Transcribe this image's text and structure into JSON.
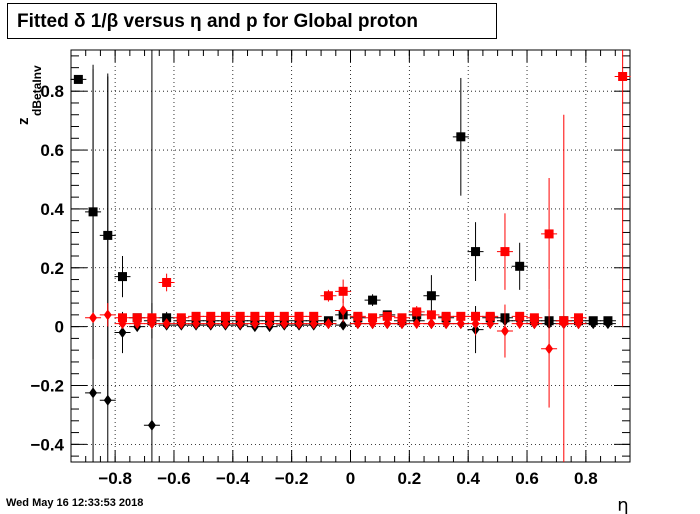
{
  "title": "Fitted δ 1/β versus η and p for Global proton",
  "timestamp": "Wed May 16 12:33:53 2018",
  "chart_data": {
    "type": "scatter",
    "title": "Fitted δ 1/β versus η and p for Global proton",
    "xlabel": "η",
    "ylabel_main": "z",
    "ylabel_sub": "dBetaInv",
    "xlim": [
      -0.95,
      0.95
    ],
    "ylim": [
      -0.46,
      0.94
    ],
    "grid": true,
    "x_ticks": [
      -0.8,
      -0.6,
      -0.4,
      -0.2,
      0,
      0.2,
      0.4,
      0.6,
      0.8
    ],
    "x_tick_labels": [
      "−0.8",
      "−0.6",
      "−0.4",
      "−0.2",
      "0",
      "0.2",
      "0.4",
      "0.6",
      "0.8"
    ],
    "y_ticks": [
      -0.4,
      -0.2,
      0,
      0.2,
      0.4,
      0.6,
      0.8
    ],
    "y_tick_labels": [
      "−0.4",
      "−0.2",
      "0",
      "0.2",
      "0.4",
      "0.6",
      "0.8"
    ],
    "series": [
      {
        "marker": "square",
        "color": "#000000",
        "x": [
          -0.925,
          -0.875,
          -0.825,
          -0.775,
          -0.725,
          -0.675,
          -0.625,
          -0.575,
          -0.525,
          -0.475,
          -0.425,
          -0.375,
          -0.325,
          -0.275,
          -0.225,
          -0.175,
          -0.125,
          -0.075,
          -0.025,
          0.025,
          0.075,
          0.125,
          0.175,
          0.225,
          0.275,
          0.325,
          0.375,
          0.425,
          0.475,
          0.525,
          0.575,
          0.625,
          0.675,
          0.725,
          0.775,
          0.825,
          0.875
        ],
        "y": [
          0.84,
          0.39,
          0.31,
          0.17,
          0.03,
          0.02,
          0.03,
          0.02,
          0.02,
          0.02,
          0.02,
          0.02,
          0.02,
          0.02,
          0.02,
          0.02,
          0.02,
          0.02,
          0.04,
          0.03,
          0.09,
          0.04,
          0.02,
          0.04,
          0.105,
          0.03,
          0.645,
          0.255,
          0.03,
          0.03,
          0.205,
          0.02,
          0.02,
          0.02,
          0.02,
          0.02,
          0.02
        ],
        "err": [
          0,
          0.5,
          0.55,
          0.07,
          0,
          0.06,
          0.02,
          0,
          0,
          0,
          0,
          0,
          0,
          0,
          0,
          0,
          0,
          0,
          0,
          0,
          0.02,
          0,
          0,
          0,
          0.07,
          0,
          0.2,
          0.1,
          0,
          0,
          0.08,
          0,
          0,
          0,
          0,
          0,
          0
        ]
      },
      {
        "marker": "diamond",
        "color": "#000000",
        "x": [
          -0.875,
          -0.825,
          -0.775,
          -0.725,
          -0.675,
          -0.625,
          -0.575,
          -0.525,
          -0.475,
          -0.425,
          -0.375,
          -0.325,
          -0.275,
          -0.225,
          -0.175,
          -0.125,
          -0.075,
          -0.025,
          0.025,
          0.075,
          0.125,
          0.175,
          0.225,
          0.275,
          0.325,
          0.375,
          0.425,
          0.475,
          0.525,
          0.575,
          0.625,
          0.675,
          0.725,
          0.775,
          0.825,
          0.875
        ],
        "y": [
          -0.225,
          -0.25,
          -0.02,
          0.0,
          -0.335,
          0.005,
          0.005,
          0.005,
          0.005,
          0.005,
          0.005,
          0.0,
          0.0,
          0.005,
          0.005,
          0.005,
          0.01,
          0.005,
          0.01,
          0.01,
          0.01,
          0.01,
          0.02,
          0.01,
          0.01,
          0.01,
          -0.01,
          0.01,
          0.02,
          0.02,
          0.01,
          0.01,
          0.01,
          0.01,
          0.01,
          0.01
        ],
        "err": [
          1.1,
          1.1,
          0.07,
          0,
          1.3,
          0,
          0,
          0,
          0,
          0,
          0,
          0,
          0,
          0,
          0,
          0,
          0,
          0,
          0,
          0,
          0,
          0,
          0,
          0,
          0,
          0,
          0.08,
          0,
          0,
          0,
          0,
          0,
          0,
          0,
          0,
          0
        ]
      },
      {
        "marker": "square",
        "color": "#ff0000",
        "x": [
          -0.775,
          -0.725,
          -0.675,
          -0.625,
          -0.575,
          -0.525,
          -0.475,
          -0.425,
          -0.375,
          -0.325,
          -0.275,
          -0.225,
          -0.175,
          -0.125,
          -0.075,
          -0.025,
          0.025,
          0.075,
          0.125,
          0.175,
          0.225,
          0.275,
          0.325,
          0.375,
          0.425,
          0.475,
          0.525,
          0.575,
          0.625,
          0.675,
          0.725,
          0.775,
          0.925
        ],
        "y": [
          0.03,
          0.03,
          0.03,
          0.15,
          0.03,
          0.035,
          0.035,
          0.035,
          0.035,
          0.035,
          0.035,
          0.035,
          0.035,
          0.035,
          0.105,
          0.12,
          0.035,
          0.03,
          0.035,
          0.03,
          0.05,
          0.04,
          0.035,
          0.035,
          0.035,
          0.035,
          0.255,
          0.035,
          0.03,
          0.315,
          0.02,
          0.03,
          0.85
        ],
        "err": [
          0,
          0,
          0,
          0.03,
          0,
          0,
          0,
          0,
          0,
          0,
          0,
          0,
          0,
          0,
          0.02,
          0.04,
          0,
          0,
          0,
          0,
          0.02,
          0,
          0,
          0,
          0,
          0,
          0.13,
          0,
          0,
          0.19,
          0.7,
          0,
          0.85
        ]
      },
      {
        "marker": "diamond",
        "color": "#ff0000",
        "x": [
          -0.875,
          -0.825,
          -0.775,
          -0.725,
          -0.675,
          -0.625,
          -0.575,
          -0.525,
          -0.475,
          -0.425,
          -0.375,
          -0.325,
          -0.275,
          -0.225,
          -0.175,
          -0.125,
          -0.075,
          -0.025,
          0.025,
          0.075,
          0.125,
          0.175,
          0.225,
          0.275,
          0.325,
          0.375,
          0.425,
          0.475,
          0.525,
          0.575,
          0.625,
          0.675,
          0.725,
          0.775
        ],
        "y": [
          0.03,
          0.04,
          0.01,
          0.01,
          0.01,
          0.01,
          0.01,
          0.01,
          0.01,
          0.01,
          0.01,
          0.01,
          0.01,
          0.01,
          0.01,
          0.01,
          0.01,
          0.055,
          0.01,
          0.01,
          0.01,
          0.01,
          0.01,
          0.01,
          0.01,
          0.01,
          0.01,
          0.01,
          -0.015,
          0.01,
          0.01,
          -0.075,
          0.01,
          0.01
        ],
        "err": [
          0,
          0.04,
          0,
          0,
          0,
          0,
          0,
          0,
          0,
          0,
          0,
          0,
          0,
          0,
          0,
          0,
          0,
          0.04,
          0,
          0,
          0,
          0,
          0,
          0,
          0,
          0,
          0.04,
          0,
          0.09,
          0,
          0,
          0.2,
          0,
          0
        ]
      }
    ]
  }
}
